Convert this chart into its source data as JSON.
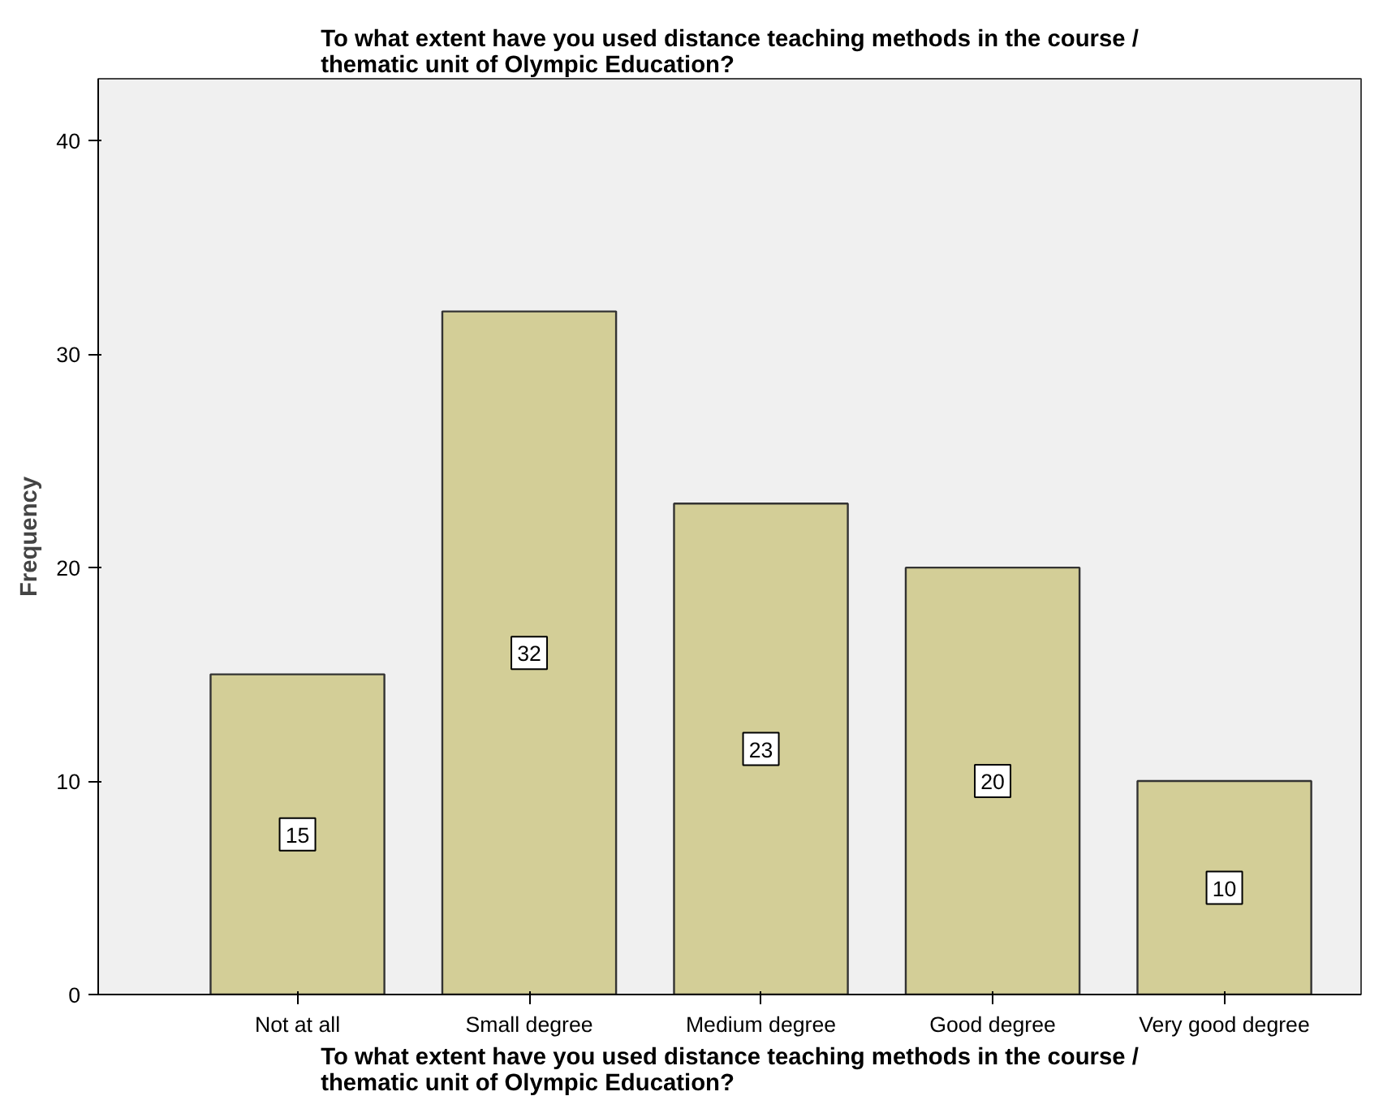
{
  "chart_data": {
    "type": "bar",
    "title": "To what extent have you used distance teaching methods in the course / thematic unit of Olympic Education?",
    "xlabel": "To what extent have you used distance teaching methods in the course / thematic unit of Olympic Education?",
    "ylabel": "Frequency",
    "categories": [
      "Not at all",
      "Small degree",
      "Medium degree",
      "Good degree",
      "Very good degree"
    ],
    "values": [
      15,
      32,
      23,
      20,
      10
    ],
    "color": "#d3ce97",
    "ylim": [
      0,
      42.9
    ],
    "yticks": [
      0,
      10,
      20,
      30,
      40
    ],
    "grid": false,
    "data_labels": true
  }
}
